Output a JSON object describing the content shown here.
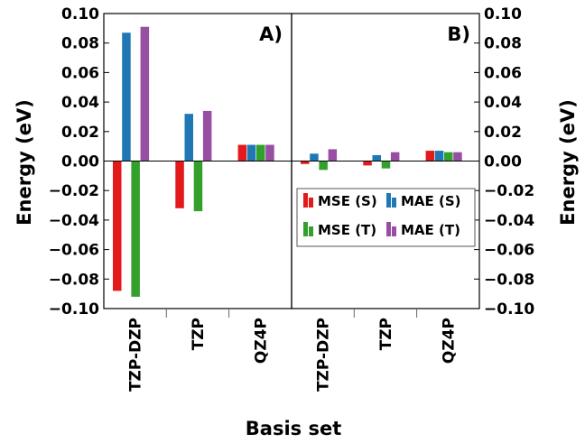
{
  "chart_data": {
    "type": "bar",
    "xlabel": "Basis set",
    "ylabel": "Energy (eV)",
    "ylabel_right": "Energy (eV)",
    "ylim": [
      -0.1,
      0.1
    ],
    "yticks": [
      0.1,
      0.08,
      0.06,
      0.04,
      0.02,
      0.0,
      -0.02,
      -0.04,
      -0.06,
      -0.08,
      -0.1
    ],
    "ytick_labels": [
      "0.10",
      "0.08",
      "0.06",
      "0.04",
      "0.02",
      "0.00",
      "−0.02",
      "−0.04",
      "−0.06",
      "−0.08",
      "−0.10"
    ],
    "categories": [
      "TZP-DZP",
      "TZP",
      "QZ4P"
    ],
    "legend": {
      "placement": "inside panel B, center-right",
      "entries": [
        {
          "label": "MSE (S)",
          "color": "#e31a1c"
        },
        {
          "label": "MAE (S)",
          "color": "#1f78b4"
        },
        {
          "label": "MSE (T)",
          "color": "#33a02c"
        },
        {
          "label": "MAE (T)",
          "color": "#984ea3"
        }
      ]
    },
    "series_colors": {
      "MSE (S)": "#e31a1c",
      "MAE (S)": "#1f78b4",
      "MSE (T)": "#33a02c",
      "MAE (T)": "#984ea3"
    },
    "panels": [
      {
        "label": "A)",
        "series": [
          {
            "name": "MSE (S)",
            "values": [
              -0.088,
              -0.032,
              0.011
            ]
          },
          {
            "name": "MAE (S)",
            "values": [
              0.087,
              0.032,
              0.011
            ]
          },
          {
            "name": "MSE (T)",
            "values": [
              -0.092,
              -0.034,
              0.011
            ]
          },
          {
            "name": "MAE (T)",
            "values": [
              0.091,
              0.034,
              0.011
            ]
          }
        ]
      },
      {
        "label": "B)",
        "series": [
          {
            "name": "MSE (S)",
            "values": [
              -0.002,
              -0.003,
              0.007
            ]
          },
          {
            "name": "MAE (S)",
            "values": [
              0.005,
              0.004,
              0.007
            ]
          },
          {
            "name": "MSE (T)",
            "values": [
              -0.006,
              -0.005,
              0.006
            ]
          },
          {
            "name": "MAE (T)",
            "values": [
              0.008,
              0.006,
              0.006
            ]
          }
        ]
      }
    ]
  }
}
